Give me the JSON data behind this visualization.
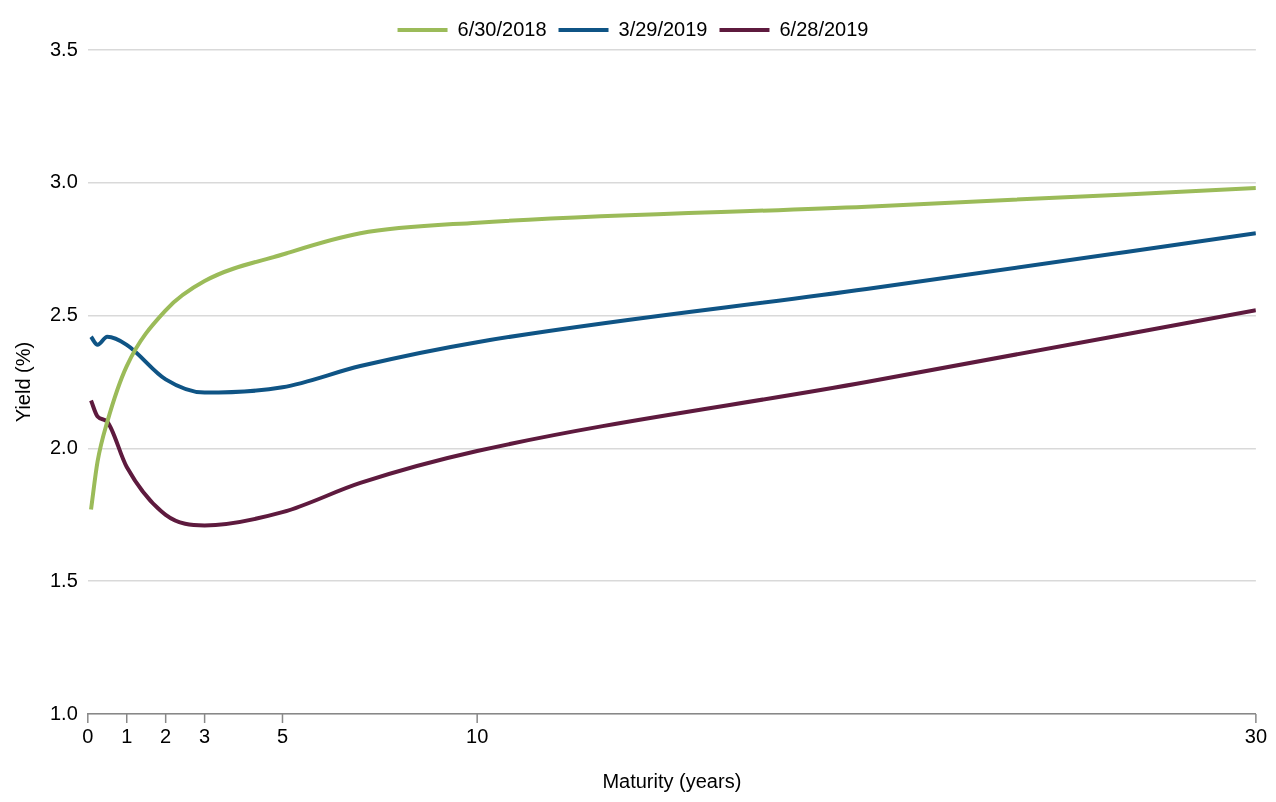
{
  "chart_data": {
    "type": "line",
    "xlabel": "Maturity (years)",
    "ylabel": "Yield (%)",
    "x": [
      0.083,
      0.25,
      0.5,
      1,
      2,
      3,
      5,
      7,
      10,
      20,
      30
    ],
    "series": [
      {
        "name": "6/30/2018",
        "color": "#9bbb59",
        "values": [
          1.77,
          1.95,
          2.1,
          2.31,
          2.52,
          2.63,
          2.73,
          2.81,
          2.85,
          2.91,
          2.98
        ]
      },
      {
        "name": "3/29/2019",
        "color": "#0f5485",
        "values": [
          2.42,
          2.39,
          2.42,
          2.39,
          2.26,
          2.21,
          2.23,
          2.31,
          2.4,
          2.6,
          2.81
        ]
      },
      {
        "name": "6/28/2019",
        "color": "#5e1a3e",
        "values": [
          2.18,
          2.12,
          2.1,
          1.93,
          1.75,
          1.71,
          1.76,
          1.87,
          1.99,
          2.25,
          2.52
        ]
      }
    ],
    "xlim": [
      0,
      30
    ],
    "xticks": [
      0,
      1,
      2,
      3,
      5,
      10,
      30
    ],
    "ylim": [
      1.0,
      3.5
    ],
    "yticks": [
      {
        "value": 1,
        "label": "1.0"
      },
      1.5,
      {
        "value": 2,
        "label": "2.0"
      },
      2.5,
      {
        "value": 3,
        "label": "3.0"
      },
      3.5
    ],
    "grid": "y",
    "legend": "top",
    "marker": "none",
    "line_style": "solid"
  }
}
